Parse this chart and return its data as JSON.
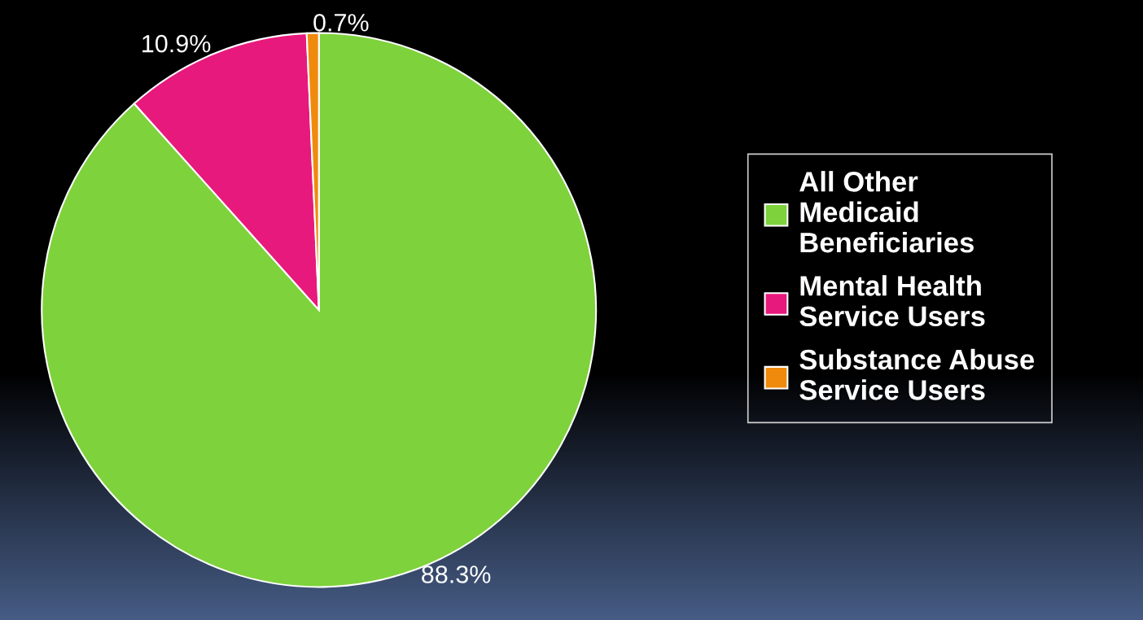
{
  "chart_data": {
    "type": "pie",
    "categories": [
      "All Other Medicaid Beneficiaries",
      "Mental Health Service Users",
      "Substance Abuse Service Users"
    ],
    "values": [
      88.3,
      10.9,
      0.7
    ],
    "colors": [
      "#7ed23c",
      "#e8197c",
      "#f08a0c"
    ],
    "value_labels": [
      "88.3%",
      "10.9%",
      "0.7%"
    ],
    "legend": "right"
  }
}
